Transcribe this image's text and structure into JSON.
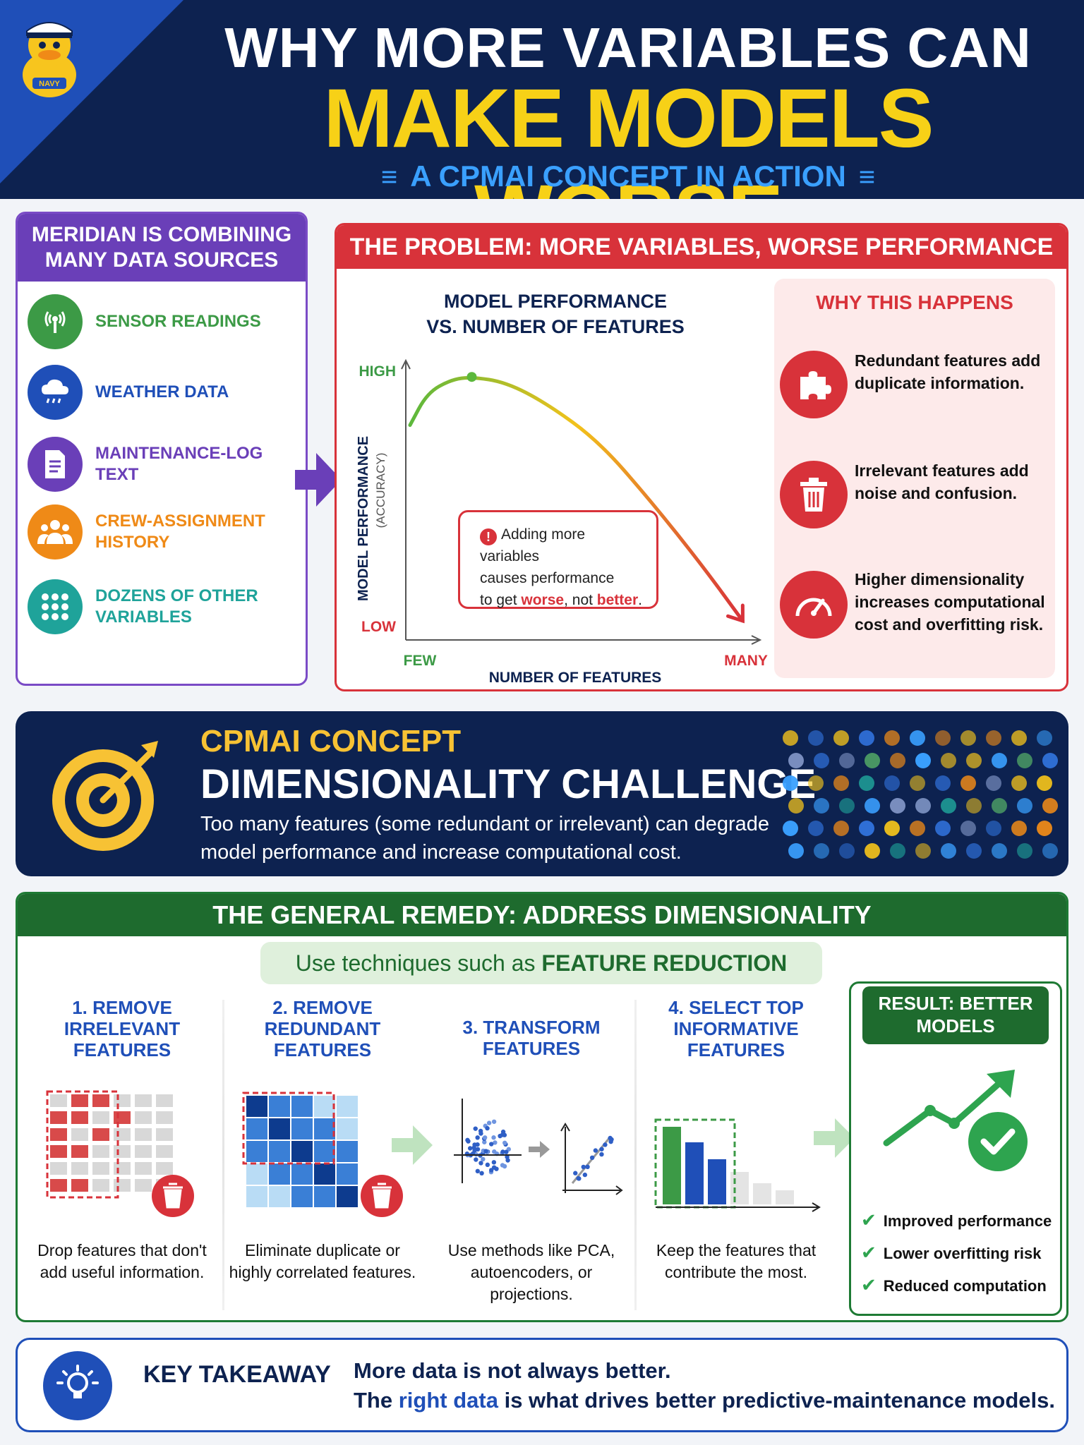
{
  "header": {
    "title_line1": "WHY MORE VARIABLES CAN",
    "title_line2": "MAKE MODELS WORSE",
    "subtitle": "A CPMAI CONCEPT IN ACTION",
    "mascot_badge": "NAVY"
  },
  "sources": {
    "title_line1": "MERIDIAN IS COMBINING",
    "title_line2": "MANY DATA SOURCES",
    "items": [
      {
        "label": "SENSOR READINGS",
        "icon": "sensor-icon",
        "color": "#3c9a46"
      },
      {
        "label": "WEATHER DATA",
        "icon": "weather-icon",
        "color": "#1f4fb8"
      },
      {
        "label": "MAINTENANCE-LOG TEXT",
        "icon": "document-icon",
        "color": "#6a3fb8"
      },
      {
        "label": "CREW-ASSIGNMENT HISTORY",
        "icon": "crew-icon",
        "color": "#ef8a17"
      },
      {
        "label": "DOZENS OF OTHER VARIABLES",
        "icon": "grid-dots-icon",
        "color": "#1fa39a"
      }
    ]
  },
  "problem": {
    "title": "THE PROBLEM: MORE VARIABLES, WORSE PERFORMANCE",
    "chart_title_line1": "MODEL PERFORMANCE",
    "chart_title_line2": "VS. NUMBER OF FEATURES",
    "callout_line1": "Adding more variables",
    "callout_line2": "causes performance",
    "callout_line3_pre": "to get ",
    "callout_worse": "worse",
    "callout_mid": ", not ",
    "callout_better": "better",
    "callout_end": ".",
    "why": {
      "title": "WHY THIS HAPPENS",
      "items": [
        {
          "text": "Redundant features add duplicate information.",
          "icon": "puzzle-icon"
        },
        {
          "text": "Irrelevant features add noise and confusion.",
          "icon": "trash-icon"
        },
        {
          "text": "Higher dimensionality increases computational cost and overfitting risk.",
          "icon": "gauge-icon"
        }
      ]
    }
  },
  "chart_data": {
    "type": "line",
    "title": "MODEL PERFORMANCE VS. NUMBER OF FEATURES",
    "xlabel": "NUMBER OF FEATURES",
    "ylabel": "MODEL PERFORMANCE",
    "ylabel_sub": "(ACCURACY)",
    "x_ticks": [
      "FEW",
      "MANY"
    ],
    "y_ticks": [
      "LOW",
      "HIGH"
    ],
    "xlim": [
      0,
      1
    ],
    "ylim": [
      0,
      1
    ],
    "series": [
      {
        "x": [
          0,
          0.05,
          0.12,
          0.18,
          0.28,
          0.4,
          0.55,
          0.7,
          0.85,
          0.97
        ],
        "y": [
          0.78,
          0.9,
          0.95,
          0.96,
          0.94,
          0.86,
          0.72,
          0.5,
          0.26,
          0.05
        ]
      }
    ],
    "colors": [
      "#5cb83c",
      "#f2c21b",
      "#d8323a"
    ],
    "grid": false
  },
  "concept": {
    "label": "CPMAI CONCEPT",
    "title": "DIMENSIONALITY CHALLENGE",
    "desc_line1": "Too many features (some redundant or irrelevant) can degrade",
    "desc_line2": "model performance and increase computational cost."
  },
  "remedy": {
    "title": "THE GENERAL REMEDY: ADDRESS DIMENSIONALITY",
    "pill_pre": "Use techniques such as ",
    "pill_bold": "FEATURE REDUCTION",
    "steps": [
      {
        "title": "1. REMOVE IRRELEVANT FEATURES",
        "desc": "Drop features that don't add useful information."
      },
      {
        "title": "2. REMOVE REDUNDANT FEATURES",
        "desc": "Eliminate duplicate or highly correlated features."
      },
      {
        "title": "3. TRANSFORM FEATURES",
        "desc": "Use methods like PCA, autoencoders, or projections."
      },
      {
        "title": "4. SELECT TOP INFORMATIVE FEATURES",
        "desc": "Keep the features that contribute the most."
      }
    ],
    "result": {
      "title_line1": "RESULT: BETTER",
      "title_line2": "MODELS",
      "items": [
        "Improved performance",
        "Lower overfitting risk",
        "Reduced computation"
      ]
    }
  },
  "takeaway": {
    "label": "KEY TAKEAWAY",
    "line1": "More data is not always better.",
    "line2_pre": "The ",
    "line2_blue": "right data",
    "line2_post": " is what drives better predictive-maintenance models."
  }
}
